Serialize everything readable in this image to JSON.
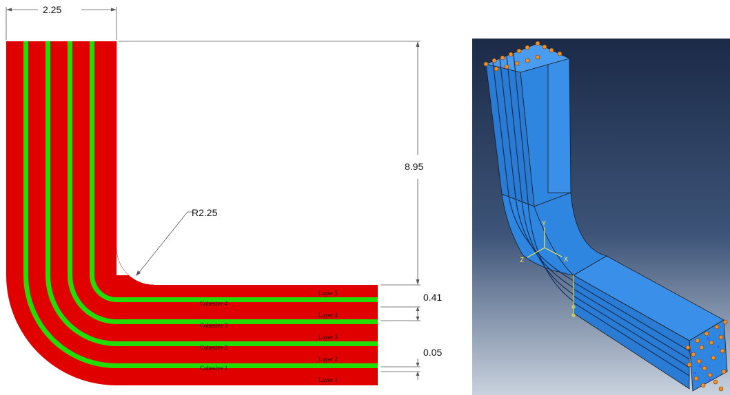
{
  "left_drawing": {
    "dimensions": {
      "width_top": "2.25",
      "height": "8.95",
      "radius": "R2.25",
      "layer_thickness": "0.41",
      "cohesive_thickness": "0.05"
    },
    "layer_labels": [
      "Layer 1",
      "Layer 2",
      "Layer 3",
      "Layer 4",
      "Layer 5"
    ],
    "cohesive_labels": [
      "Cohesive 1",
      "Cohesive 2",
      "Cohesive 3",
      "Cohesive 4"
    ],
    "colors": {
      "layer": "#e00000",
      "cohesive": "#22dd00"
    }
  },
  "right_render": {
    "axis_labels": {
      "y": "Y",
      "x": "X",
      "z": "Z"
    },
    "colors": {
      "part": "#2f86e0",
      "background_top": "#1b2a47",
      "background_bottom": "#c9d2de",
      "constraint": "#f0902a"
    }
  }
}
